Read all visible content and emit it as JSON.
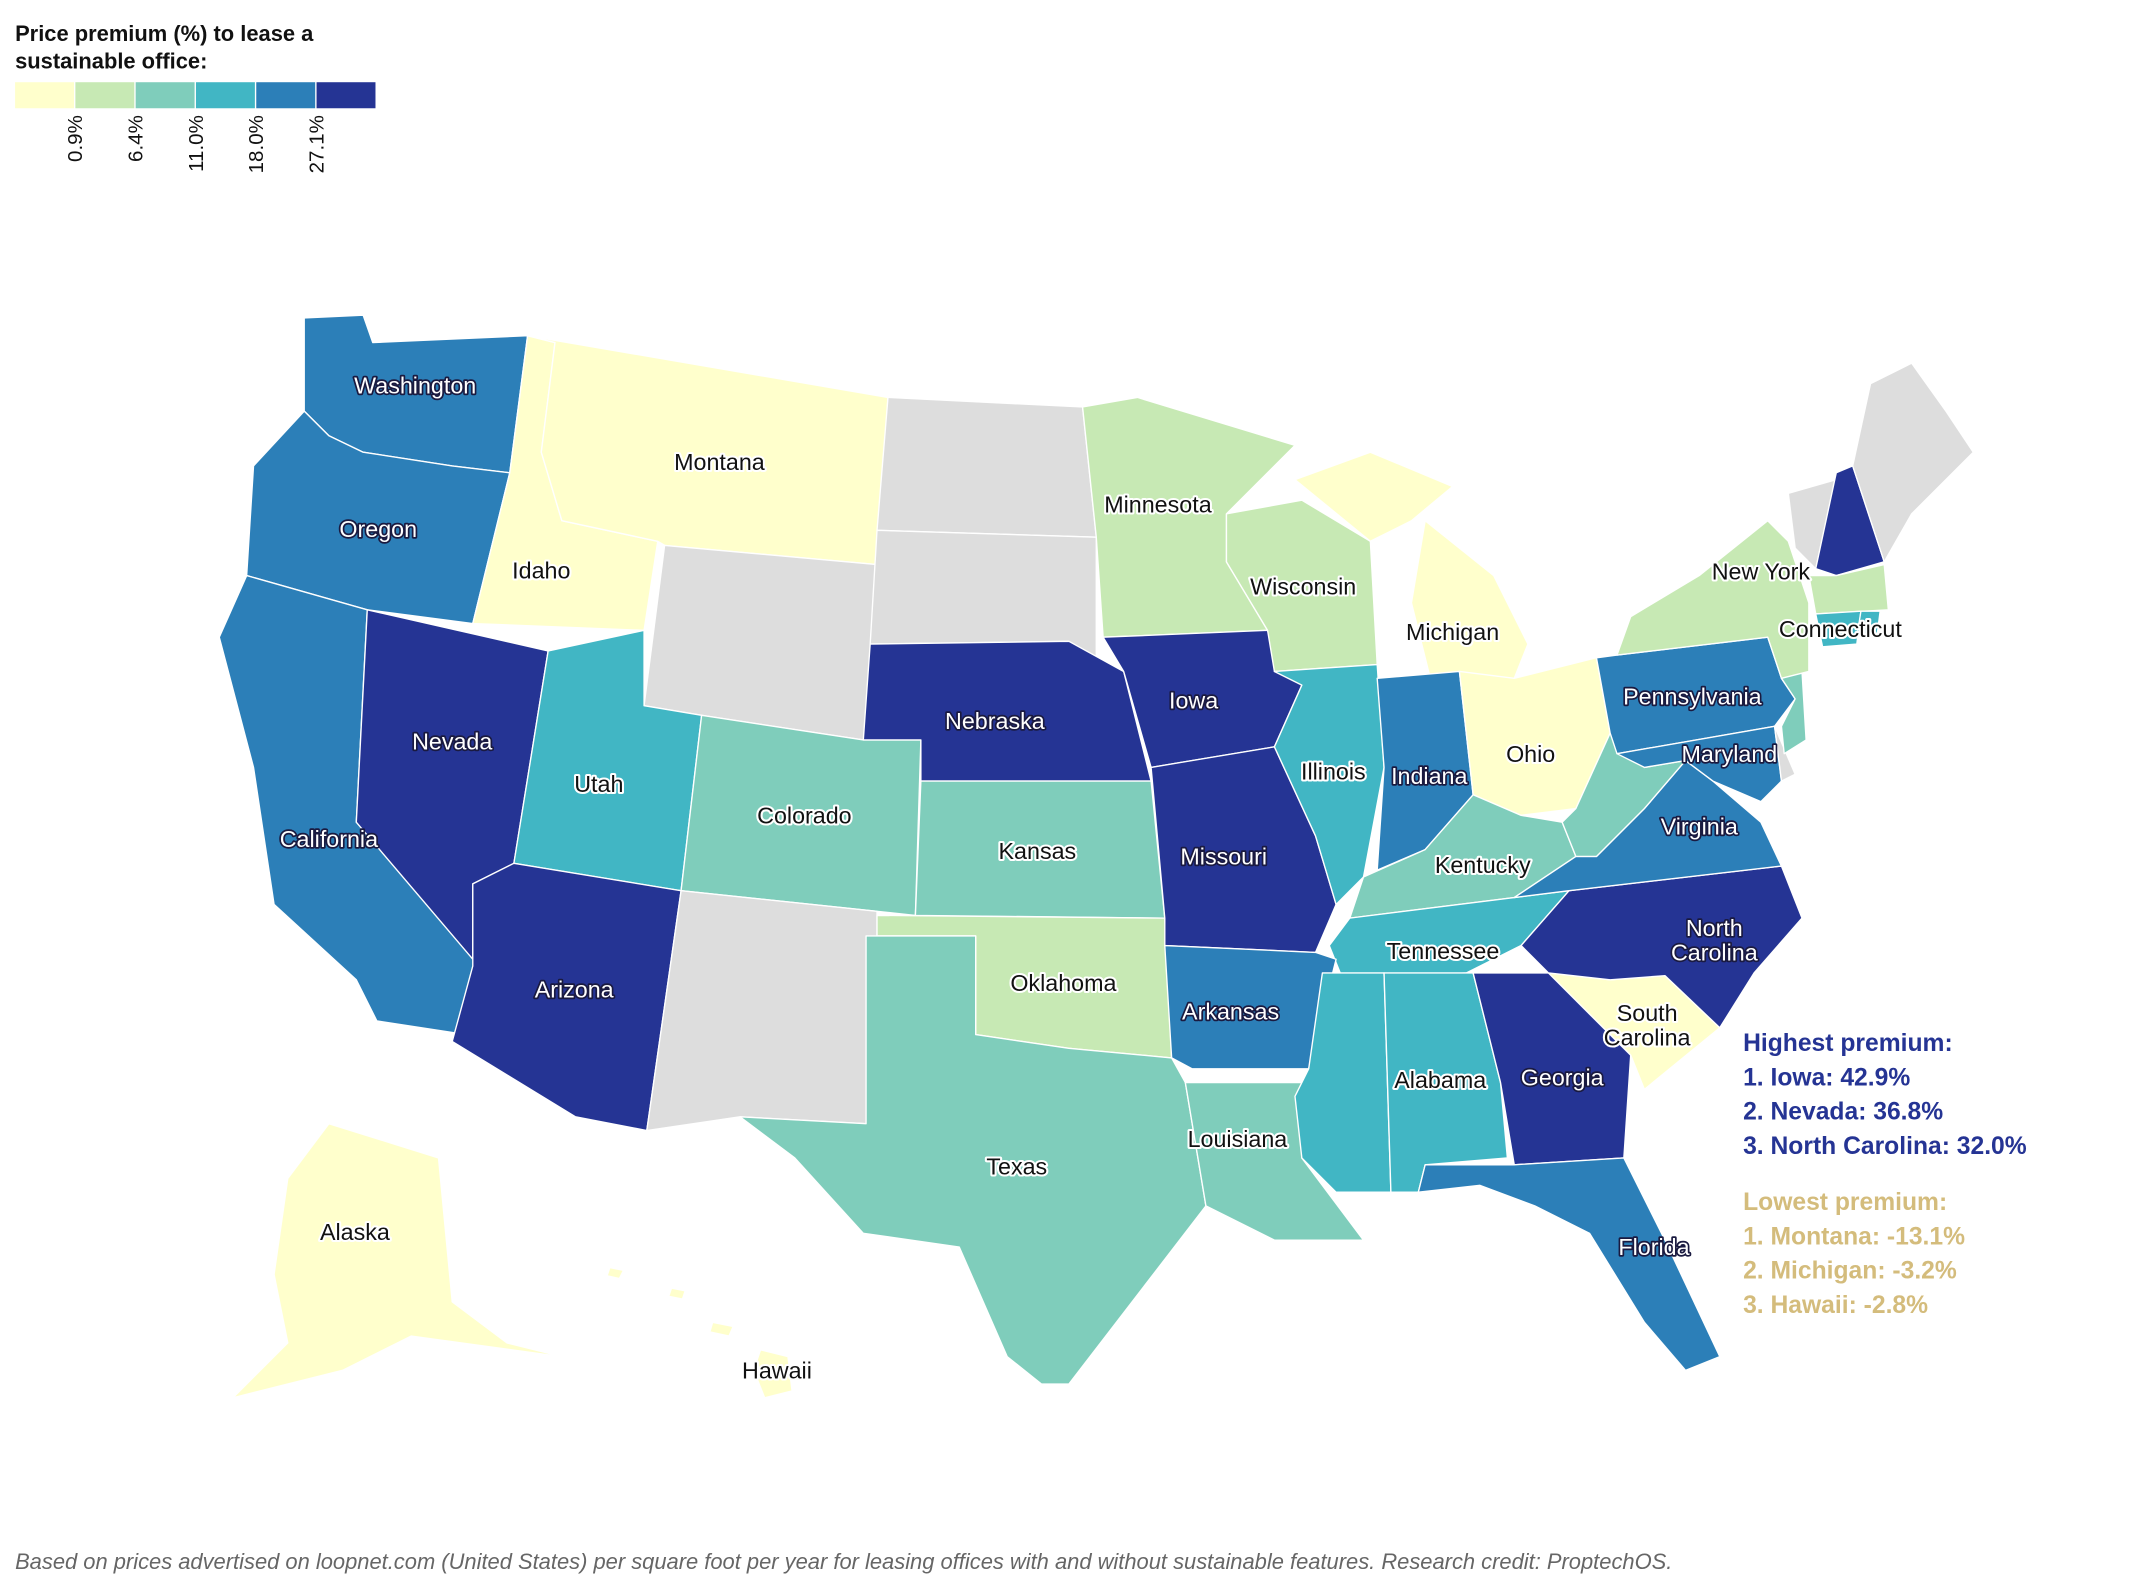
{
  "legend": {
    "title_line1": "Price premium (%) to lease a",
    "title_line2": "sustainable office:",
    "colors": [
      "#ffffcc",
      "#c7e9b4",
      "#7fcdbb",
      "#41b6c4",
      "#2c7fb8",
      "#253494"
    ],
    "ticks": [
      "0.9%",
      "6.4%",
      "11.0%",
      "18.0%",
      "27.1%"
    ],
    "no_data_color": "#dddddd"
  },
  "highest": {
    "title": "Highest premium:",
    "items": [
      "1. Iowa: 42.9%",
      "2. Nevada: 36.8%",
      "3. North Carolina: 32.0%"
    ],
    "color": "#253494"
  },
  "lowest": {
    "title": "Lowest premium:",
    "items": [
      "1. Montana: -13.1%",
      "2. Michigan: -3.2%",
      "3. Hawaii: -2.8%"
    ],
    "color": "#d4bc7c"
  },
  "footer": "Based on prices advertised on loopnet.com (United States) per square foot per year for leasing offices with and without sustainable features. Research credit: ProptechOS.",
  "states": [
    {
      "name": "Washington",
      "bucket": 4,
      "label": "Washington"
    },
    {
      "name": "Oregon",
      "bucket": 4,
      "label": "Oregon"
    },
    {
      "name": "California",
      "bucket": 4,
      "label": "California"
    },
    {
      "name": "Nevada",
      "bucket": 5,
      "label": "Nevada"
    },
    {
      "name": "Idaho",
      "bucket": 0,
      "label": "Idaho"
    },
    {
      "name": "Montana",
      "bucket": 0,
      "label": "Montana"
    },
    {
      "name": "Wyoming",
      "bucket": null,
      "label": ""
    },
    {
      "name": "Utah",
      "bucket": 3,
      "label": "Utah"
    },
    {
      "name": "Colorado",
      "bucket": 2,
      "label": "Colorado"
    },
    {
      "name": "Arizona",
      "bucket": 5,
      "label": "Arizona"
    },
    {
      "name": "New Mexico",
      "bucket": null,
      "label": ""
    },
    {
      "name": "North Dakota",
      "bucket": null,
      "label": ""
    },
    {
      "name": "South Dakota",
      "bucket": null,
      "label": ""
    },
    {
      "name": "Nebraska",
      "bucket": 5,
      "label": "Nebraska"
    },
    {
      "name": "Kansas",
      "bucket": 2,
      "label": "Kansas"
    },
    {
      "name": "Oklahoma",
      "bucket": 1,
      "label": "Oklahoma"
    },
    {
      "name": "Texas",
      "bucket": 2,
      "label": "Texas"
    },
    {
      "name": "Minnesota",
      "bucket": 1,
      "label": "Minnesota"
    },
    {
      "name": "Iowa",
      "bucket": 5,
      "label": "Iowa"
    },
    {
      "name": "Missouri",
      "bucket": 5,
      "label": "Missouri"
    },
    {
      "name": "Wisconsin",
      "bucket": 1,
      "label": "Wisconsin"
    },
    {
      "name": "Illinois",
      "bucket": 3,
      "label": "Illinois"
    },
    {
      "name": "Michigan",
      "bucket": 0,
      "label": "Michigan"
    },
    {
      "name": "Indiana",
      "bucket": 4,
      "label": "Indiana"
    },
    {
      "name": "Ohio",
      "bucket": 0,
      "label": "Ohio"
    },
    {
      "name": "Kentucky",
      "bucket": 2,
      "label": "Kentucky"
    },
    {
      "name": "Tennessee",
      "bucket": 3,
      "label": "Tennessee"
    },
    {
      "name": "Arkansas",
      "bucket": 4,
      "label": "Arkansas"
    },
    {
      "name": "Louisiana",
      "bucket": 2,
      "label": "Louisiana"
    },
    {
      "name": "Mississippi",
      "bucket": 3,
      "label": ""
    },
    {
      "name": "Alabama",
      "bucket": 3,
      "label": "Alabama"
    },
    {
      "name": "Georgia",
      "bucket": 5,
      "label": "Georgia"
    },
    {
      "name": "Florida",
      "bucket": 4,
      "label": "Florida"
    },
    {
      "name": "South Carolina",
      "bucket": 0,
      "label": "South Carolina"
    },
    {
      "name": "North Carolina",
      "bucket": 5,
      "label": "North Carolina"
    },
    {
      "name": "Virginia",
      "bucket": 4,
      "label": "Virginia"
    },
    {
      "name": "West Virginia",
      "bucket": 2,
      "label": ""
    },
    {
      "name": "Pennsylvania",
      "bucket": 4,
      "label": "Pennsylvania"
    },
    {
      "name": "Maryland",
      "bucket": 4,
      "label": "Maryland"
    },
    {
      "name": "Delaware",
      "bucket": null,
      "label": ""
    },
    {
      "name": "New Jersey",
      "bucket": 2,
      "label": ""
    },
    {
      "name": "New York",
      "bucket": 1,
      "label": "New York"
    },
    {
      "name": "Vermont",
      "bucket": null,
      "label": ""
    },
    {
      "name": "New Hampshire",
      "bucket": 5,
      "label": ""
    },
    {
      "name": "Maine",
      "bucket": null,
      "label": ""
    },
    {
      "name": "Massachusetts",
      "bucket": 1,
      "label": ""
    },
    {
      "name": "Connecticut",
      "bucket": 3,
      "label": "Connecticut"
    },
    {
      "name": "Rhode Island",
      "bucket": 3,
      "label": ""
    },
    {
      "name": "Alaska",
      "bucket": 0,
      "label": "Alaska"
    },
    {
      "name": "Hawaii",
      "bucket": 0,
      "label": "Hawaii"
    }
  ]
}
